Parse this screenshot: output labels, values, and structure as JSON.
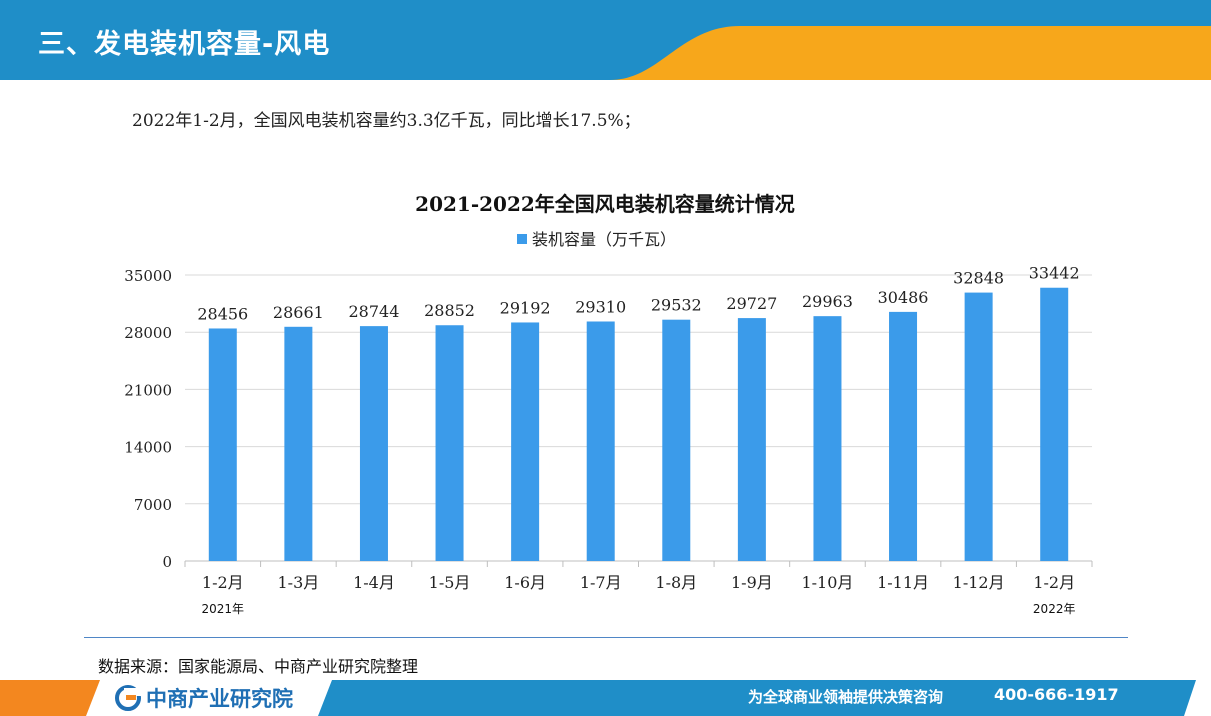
{
  "header": {
    "title": "三、发电装机容量-风电"
  },
  "summary": "2022年1-2月，全国风电装机容量约3.3亿千瓦，同比增长17.5%；",
  "source": "数据来源：国家能源局、中商产业研究院整理",
  "footer": {
    "logo_text": "中商产业研究院",
    "slogan": "为全球商业领袖提供决策咨询",
    "phone": "400-666-1917"
  },
  "colors": {
    "header_blue": "#1f8ec8",
    "header_orange": "#f7a71b",
    "bar_blue": "#3b9bea",
    "footer_blue": "#1f8ec8",
    "footer_orange": "#f3871f"
  },
  "icons": {
    "logo": "askci-logo-icon"
  },
  "chart_data": {
    "type": "bar",
    "title": "2021-2022年全国风电装机容量统计情况",
    "categories": [
      "1-2月",
      "1-3月",
      "1-4月",
      "1-5月",
      "1-6月",
      "1-7月",
      "1-8月",
      "1-9月",
      "1-10月",
      "1-11月",
      "1-12月",
      "1-2月"
    ],
    "category_sublabels": [
      "2021年",
      "",
      "",
      "",
      "",
      "",
      "",
      "",
      "",
      "",
      "",
      "2022年"
    ],
    "series": [
      {
        "name": "装机容量（万千瓦）",
        "values": [
          28456,
          28661,
          28744,
          28852,
          29192,
          29310,
          29532,
          29727,
          29963,
          30486,
          32848,
          33442
        ]
      }
    ],
    "ylim": [
      0,
      35000
    ],
    "yticks": [
      0,
      7000,
      14000,
      21000,
      28000,
      35000
    ],
    "xlabel": "",
    "ylabel": "",
    "grid": true,
    "legend": "top"
  }
}
